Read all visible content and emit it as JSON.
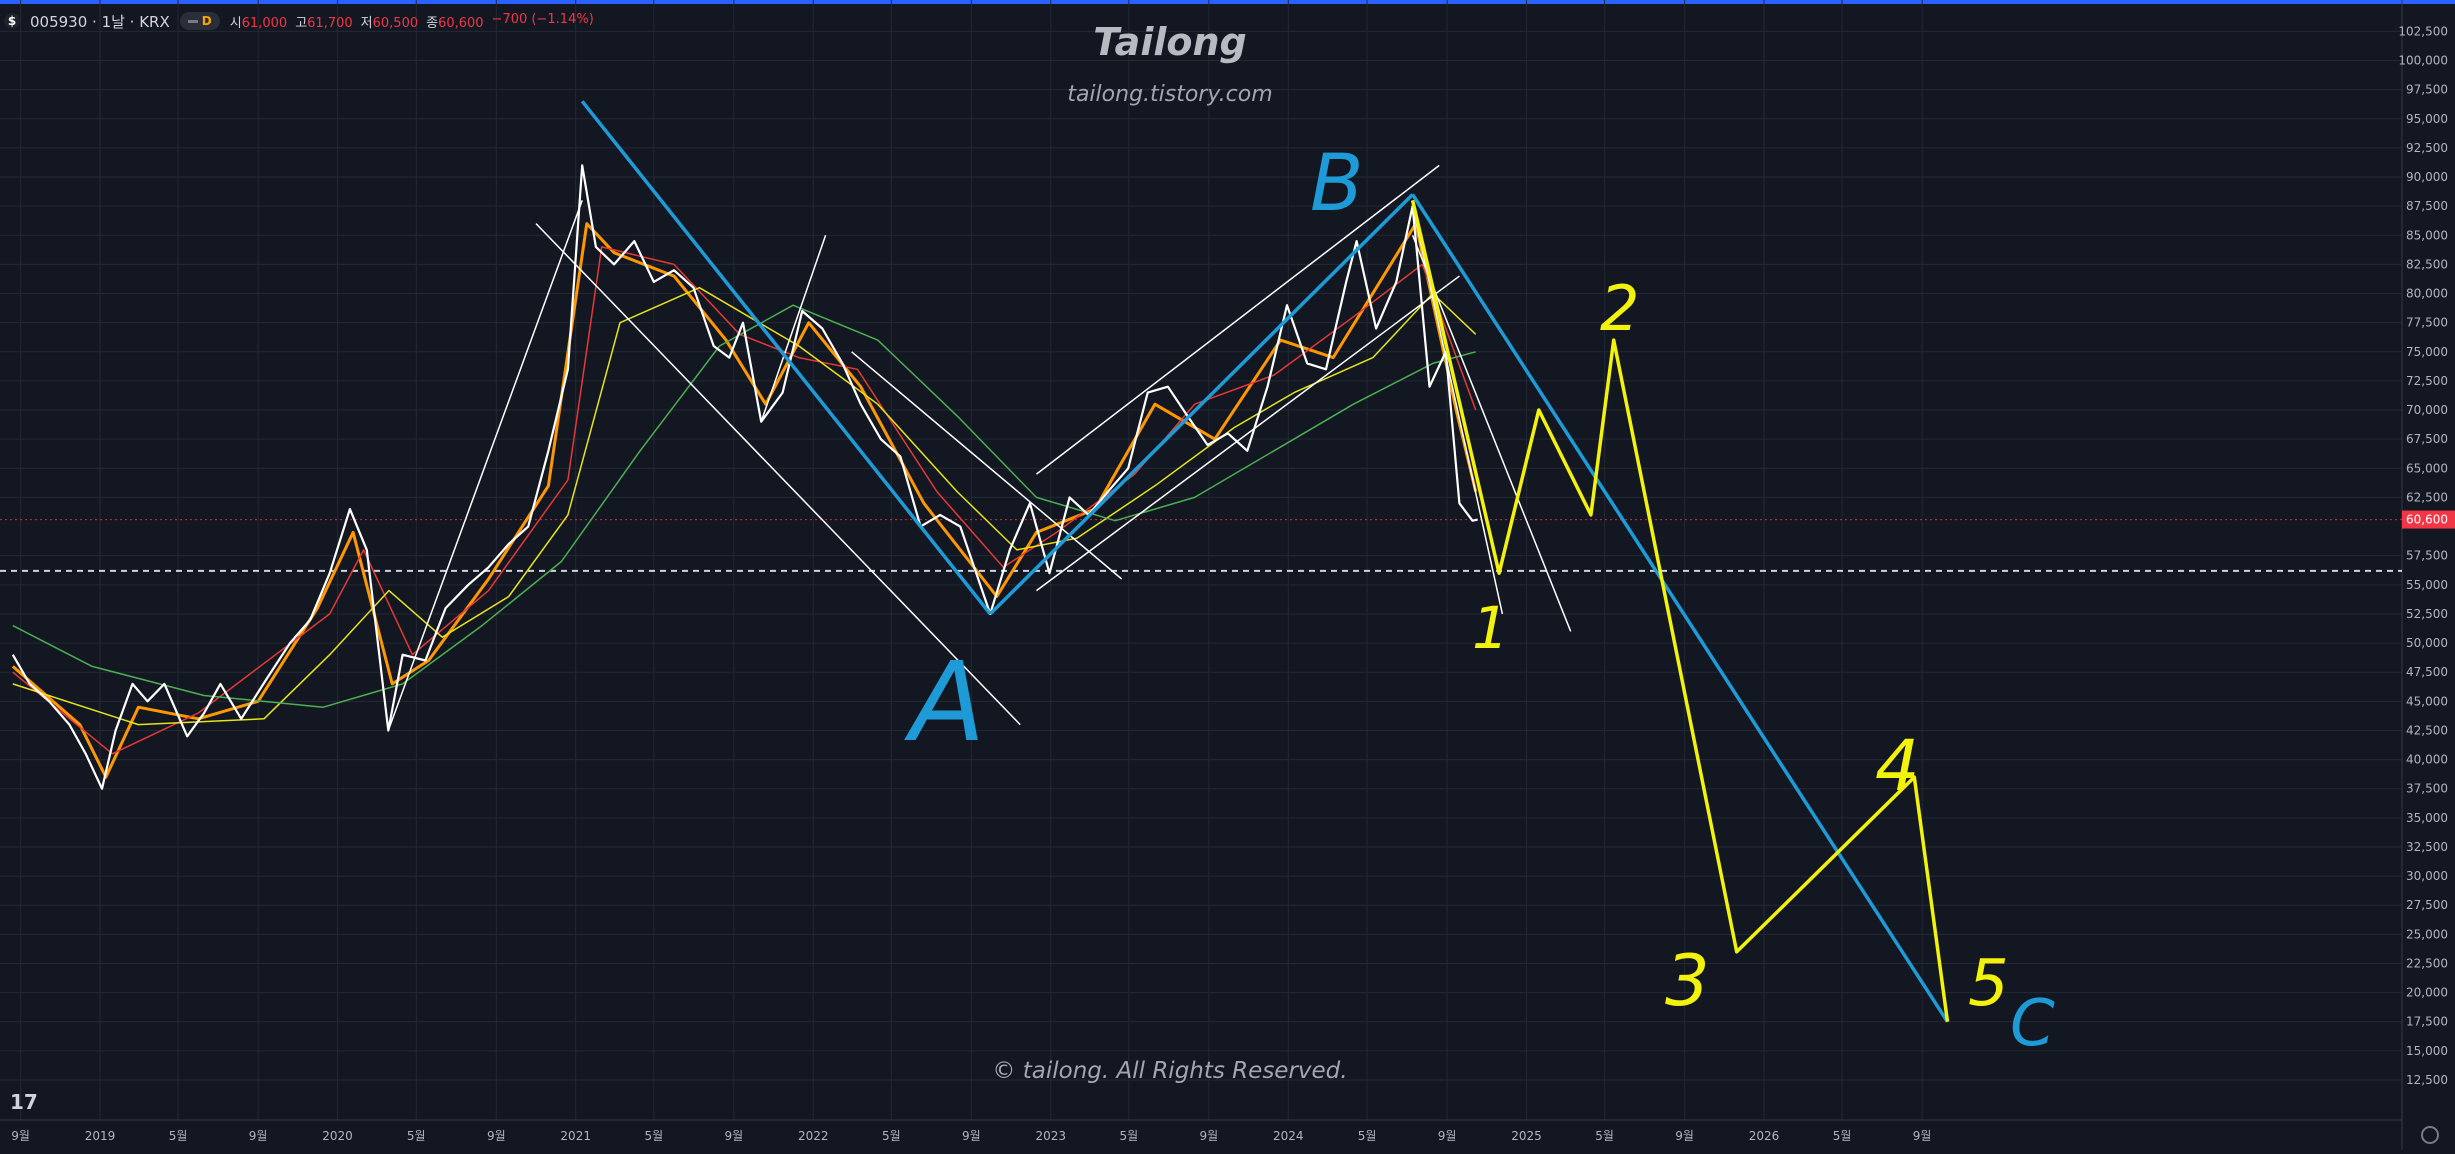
{
  "header": {
    "symbol_icon": "$",
    "symbol": "005930 · 1날 · KRX",
    "interval_badge": "D",
    "open_label": "시",
    "open": "61,000",
    "high_label": "고",
    "high": "61,700",
    "low_label": "저",
    "low": "60,500",
    "close_label": "종",
    "close": "60,600",
    "change": "−700 (−1.14%)"
  },
  "watermark": {
    "title": "Tailong",
    "site": "tailong.tistory.com",
    "copyright": "© tailong. All Rights Reserved."
  },
  "tv_logo": "17",
  "colors": {
    "background": "#131722",
    "grid": "#232834",
    "price_line": "#ffffff",
    "ma_short": "#ff9800",
    "ma_red": "#e53935",
    "ma_yellow": "#e5e51a",
    "ma_green": "#4caf50",
    "trend_lines": "#ffffff",
    "abc_lines": "#1e9bd7",
    "wave_lines": "#f2f20c",
    "last_price_bg": "#f23645",
    "dashed_level": "#d1d4dc"
  },
  "chart_data": {
    "type": "line",
    "title": "005930 · 1날 · KRX",
    "ylim": [
      10000,
      105000
    ],
    "y_ticks": [
      "102,500",
      "100,000",
      "97,500",
      "95,000",
      "92,500",
      "90,000",
      "87,500",
      "85,000",
      "82,500",
      "80,000",
      "77,500",
      "75,000",
      "72,500",
      "70,000",
      "67,500",
      "65,000",
      "62,500",
      "57,500",
      "55,000",
      "52,500",
      "50,000",
      "47,500",
      "45,000",
      "42,500",
      "40,000",
      "37,500",
      "35,000",
      "32,500",
      "30,000",
      "27,500",
      "25,000",
      "22,500",
      "20,000",
      "17,500",
      "15,000",
      "12,500"
    ],
    "y_tick_values": [
      102500,
      100000,
      97500,
      95000,
      92500,
      90000,
      87500,
      85000,
      82500,
      80000,
      77500,
      75000,
      72500,
      70000,
      67500,
      65000,
      62500,
      57500,
      55000,
      52500,
      50000,
      47500,
      45000,
      42500,
      40000,
      37500,
      35000,
      32500,
      30000,
      27500,
      25000,
      22500,
      20000,
      17500,
      15000,
      12500
    ],
    "x_ticks": [
      "9월",
      "2019",
      "5월",
      "9월",
      "2020",
      "5월",
      "9월",
      "2021",
      "5월",
      "9월",
      "2022",
      "5월",
      "9월",
      "2023",
      "5월",
      "9월",
      "2024",
      "5월",
      "9월",
      "2025",
      "5월",
      "9월",
      "2026",
      "5월",
      "9월"
    ],
    "x_tick_dates": [
      "2018-09-01",
      "2019-01-01",
      "2019-05-01",
      "2019-09-01",
      "2020-01-01",
      "2020-05-01",
      "2020-09-01",
      "2021-01-01",
      "2021-05-01",
      "2021-09-01",
      "2022-01-01",
      "2022-05-01",
      "2022-09-01",
      "2023-01-01",
      "2023-05-01",
      "2023-09-01",
      "2024-01-01",
      "2024-05-01",
      "2024-09-01",
      "2025-01-01",
      "2025-05-01",
      "2025-09-01",
      "2026-01-01",
      "2026-05-01",
      "2026-09-01"
    ],
    "last_price": "60,600",
    "last_price_value": 60600,
    "dashed_level_value": 56200,
    "price_series": {
      "name": "005930",
      "points": [
        [
          "2018-08-20",
          49000
        ],
        [
          "2018-09-15",
          46500
        ],
        [
          "2018-10-15",
          45000
        ],
        [
          "2018-11-15",
          43000
        ],
        [
          "2018-12-10",
          40500
        ],
        [
          "2019-01-04",
          37500
        ],
        [
          "2019-01-25",
          42500
        ],
        [
          "2019-02-20",
          46500
        ],
        [
          "2019-03-15",
          45000
        ],
        [
          "2019-04-10",
          46500
        ],
        [
          "2019-05-15",
          42000
        ],
        [
          "2019-06-10",
          44000
        ],
        [
          "2019-07-05",
          46500
        ],
        [
          "2019-08-06",
          43500
        ],
        [
          "2019-09-15",
          47000
        ],
        [
          "2019-10-20",
          50000
        ],
        [
          "2019-11-20",
          52000
        ],
        [
          "2019-12-20",
          56000
        ],
        [
          "2020-01-20",
          61500
        ],
        [
          "2020-02-15",
          58000
        ],
        [
          "2020-03-19",
          42500
        ],
        [
          "2020-04-10",
          49000
        ],
        [
          "2020-05-15",
          48500
        ],
        [
          "2020-06-15",
          53000
        ],
        [
          "2020-07-20",
          55000
        ],
        [
          "2020-08-20",
          56500
        ],
        [
          "2020-09-20",
          58500
        ],
        [
          "2020-10-20",
          60000
        ],
        [
          "2020-11-20",
          66500
        ],
        [
          "2020-12-20",
          73500
        ],
        [
          "2021-01-11",
          91000
        ],
        [
          "2021-02-01",
          84000
        ],
        [
          "2021-03-01",
          82500
        ],
        [
          "2021-04-01",
          84500
        ],
        [
          "2021-05-01",
          81000
        ],
        [
          "2021-06-01",
          82000
        ],
        [
          "2021-07-01",
          80500
        ],
        [
          "2021-08-01",
          75500
        ],
        [
          "2021-08-25",
          74500
        ],
        [
          "2021-09-15",
          77500
        ],
        [
          "2021-10-13",
          69000
        ],
        [
          "2021-11-15",
          71500
        ],
        [
          "2021-12-15",
          78500
        ],
        [
          "2022-01-15",
          77000
        ],
        [
          "2022-02-15",
          74000
        ],
        [
          "2022-03-15",
          70500
        ],
        [
          "2022-04-15",
          67500
        ],
        [
          "2022-05-15",
          66000
        ],
        [
          "2022-06-15",
          60000
        ],
        [
          "2022-07-15",
          61000
        ],
        [
          "2022-08-15",
          60000
        ],
        [
          "2022-09-30",
          52500
        ],
        [
          "2022-10-30",
          58000
        ],
        [
          "2022-11-30",
          62000
        ],
        [
          "2022-12-30",
          56000
        ],
        [
          "2023-01-30",
          62500
        ],
        [
          "2023-02-28",
          61000
        ],
        [
          "2023-03-30",
          63000
        ],
        [
          "2023-04-30",
          65000
        ],
        [
          "2023-05-30",
          71500
        ],
        [
          "2023-06-30",
          72000
        ],
        [
          "2023-07-30",
          69500
        ],
        [
          "2023-08-30",
          67000
        ],
        [
          "2023-09-30",
          68000
        ],
        [
          "2023-10-30",
          66500
        ],
        [
          "2023-11-30",
          72000
        ],
        [
          "2023-12-30",
          79000
        ],
        [
          "2024-01-30",
          74000
        ],
        [
          "2024-02-28",
          73500
        ],
        [
          "2024-03-30",
          81000
        ],
        [
          "2024-04-15",
          84500
        ],
        [
          "2024-05-15",
          77000
        ],
        [
          "2024-06-15",
          81000
        ],
        [
          "2024-07-10",
          87500
        ],
        [
          "2024-08-05",
          72000
        ],
        [
          "2024-08-30",
          75000
        ],
        [
          "2024-09-20",
          62000
        ],
        [
          "2024-10-10",
          60500
        ],
        [
          "2024-10-18",
          60600
        ]
      ]
    },
    "moving_averages": [
      {
        "color": "ma_short",
        "points": [
          [
            "2018-08-20",
            48000
          ],
          [
            "2018-12-01",
            43000
          ],
          [
            "2019-01-10",
            38500
          ],
          [
            "2019-03-01",
            44500
          ],
          [
            "2019-06-01",
            43500
          ],
          [
            "2019-09-01",
            45000
          ],
          [
            "2019-12-01",
            53000
          ],
          [
            "2020-01-25",
            59500
          ],
          [
            "2020-03-25",
            46500
          ],
          [
            "2020-05-20",
            48500
          ],
          [
            "2020-08-20",
            55500
          ],
          [
            "2020-11-20",
            63500
          ],
          [
            "2021-01-18",
            86000
          ],
          [
            "2021-03-01",
            83500
          ],
          [
            "2021-06-01",
            81500
          ],
          [
            "2021-08-20",
            76000
          ],
          [
            "2021-10-20",
            70500
          ],
          [
            "2021-12-25",
            77500
          ],
          [
            "2022-03-15",
            72000
          ],
          [
            "2022-06-20",
            62000
          ],
          [
            "2022-10-10",
            54000
          ],
          [
            "2022-12-10",
            59500
          ],
          [
            "2023-03-10",
            61500
          ],
          [
            "2023-06-10",
            70500
          ],
          [
            "2023-09-10",
            67500
          ],
          [
            "2023-12-20",
            76000
          ],
          [
            "2024-03-10",
            74500
          ],
          [
            "2024-07-15",
            86000
          ],
          [
            "2024-09-15",
            70000
          ],
          [
            "2024-10-15",
            63000
          ]
        ]
      },
      {
        "color": "ma_red",
        "points": [
          [
            "2018-08-20",
            47500
          ],
          [
            "2019-01-20",
            40500
          ],
          [
            "2019-06-01",
            44000
          ],
          [
            "2019-12-20",
            52500
          ],
          [
            "2020-02-10",
            58000
          ],
          [
            "2020-04-25",
            49000
          ],
          [
            "2020-08-20",
            54500
          ],
          [
            "2020-12-20",
            64000
          ],
          [
            "2021-02-10",
            84000
          ],
          [
            "2021-06-01",
            82500
          ],
          [
            "2021-09-10",
            76500
          ],
          [
            "2021-12-10",
            74500
          ],
          [
            "2022-03-10",
            73500
          ],
          [
            "2022-07-10",
            63000
          ],
          [
            "2022-10-20",
            56500
          ],
          [
            "2023-01-10",
            59500
          ],
          [
            "2023-05-10",
            64500
          ],
          [
            "2023-08-10",
            70500
          ],
          [
            "2023-12-10",
            73000
          ],
          [
            "2024-04-10",
            78000
          ],
          [
            "2024-07-25",
            82500
          ],
          [
            "2024-10-15",
            70000
          ]
        ]
      },
      {
        "color": "ma_yellow",
        "points": [
          [
            "2018-08-20",
            46500
          ],
          [
            "2019-03-01",
            43000
          ],
          [
            "2019-09-10",
            43500
          ],
          [
            "2019-12-20",
            49000
          ],
          [
            "2020-03-20",
            54500
          ],
          [
            "2020-06-10",
            50500
          ],
          [
            "2020-09-20",
            54000
          ],
          [
            "2020-12-20",
            61000
          ],
          [
            "2021-03-10",
            77500
          ],
          [
            "2021-07-10",
            80500
          ],
          [
            "2021-12-10",
            75500
          ],
          [
            "2022-04-10",
            70500
          ],
          [
            "2022-08-10",
            63000
          ],
          [
            "2022-11-10",
            58000
          ],
          [
            "2023-02-10",
            59000
          ],
          [
            "2023-06-10",
            63500
          ],
          [
            "2023-10-10",
            68500
          ],
          [
            "2024-01-10",
            71500
          ],
          [
            "2024-05-10",
            74500
          ],
          [
            "2024-08-10",
            80000
          ],
          [
            "2024-10-15",
            76500
          ]
        ]
      },
      {
        "color": "ma_green",
        "points": [
          [
            "2018-08-20",
            51500
          ],
          [
            "2018-12-20",
            48000
          ],
          [
            "2019-06-10",
            45500
          ],
          [
            "2019-12-10",
            44500
          ],
          [
            "2020-04-10",
            46500
          ],
          [
            "2020-08-10",
            51500
          ],
          [
            "2020-12-10",
            57000
          ],
          [
            "2021-04-10",
            66500
          ],
          [
            "2021-08-10",
            75500
          ],
          [
            "2021-12-01",
            79000
          ],
          [
            "2022-04-10",
            76000
          ],
          [
            "2022-08-10",
            69500
          ],
          [
            "2022-12-10",
            62500
          ],
          [
            "2023-04-10",
            60500
          ],
          [
            "2023-08-10",
            62500
          ],
          [
            "2023-12-10",
            66500
          ],
          [
            "2024-04-10",
            70500
          ],
          [
            "2024-08-10",
            74000
          ],
          [
            "2024-10-15",
            75000
          ]
        ]
      }
    ],
    "trend_lines_white": [
      [
        [
          "2020-03-19",
          42500
        ],
        [
          "2021-01-11",
          88000
        ]
      ],
      [
        [
          "2021-01-11",
          96500
        ],
        [
          "2022-09-30",
          52500
        ]
      ],
      [
        [
          "2020-11-01",
          86000
        ],
        [
          "2022-11-15",
          43000
        ]
      ],
      [
        [
          "2021-10-13",
          69000
        ],
        [
          "2022-01-20",
          85000
        ]
      ],
      [
        [
          "2022-03-01",
          75000
        ],
        [
          "2023-04-20",
          55500
        ]
      ],
      [
        [
          "2022-12-10",
          64500
        ],
        [
          "2024-08-20",
          91000
        ]
      ],
      [
        [
          "2022-12-10",
          54500
        ],
        [
          "2024-09-20",
          81500
        ]
      ],
      [
        [
          "2024-07-10",
          87500
        ],
        [
          "2024-11-25",
          52500
        ]
      ],
      [
        [
          "2024-07-10",
          85000
        ],
        [
          "2025-03-10",
          51000
        ]
      ]
    ],
    "abc_lines": [
      [
        [
          "2021-01-11",
          96500
        ],
        [
          "2022-09-30",
          52500
        ]
      ],
      [
        [
          "2022-09-30",
          52500
        ],
        [
          "2024-07-10",
          88500
        ]
      ],
      [
        [
          "2024-07-10",
          88500
        ],
        [
          "2026-10-10",
          17500
        ]
      ]
    ],
    "wave_path": [
      [
        "2024-07-10",
        88000
      ],
      [
        "2024-11-20",
        56000
      ],
      [
        "2025-01-20",
        70000
      ],
      [
        "2025-04-10",
        61000
      ],
      [
        "2025-05-15",
        76000
      ],
      [
        "2025-11-20",
        23500
      ],
      [
        "2026-08-20",
        38500
      ],
      [
        "2026-10-10",
        17500
      ]
    ],
    "wave_labels": [
      "1",
      "2",
      "3",
      "4",
      "5"
    ],
    "abc_labels": [
      "A",
      "B",
      "C"
    ],
    "annotation_labels": [
      "Tailong",
      "tailong.tistory.com",
      "© tailong. All Rights Reserved."
    ]
  }
}
